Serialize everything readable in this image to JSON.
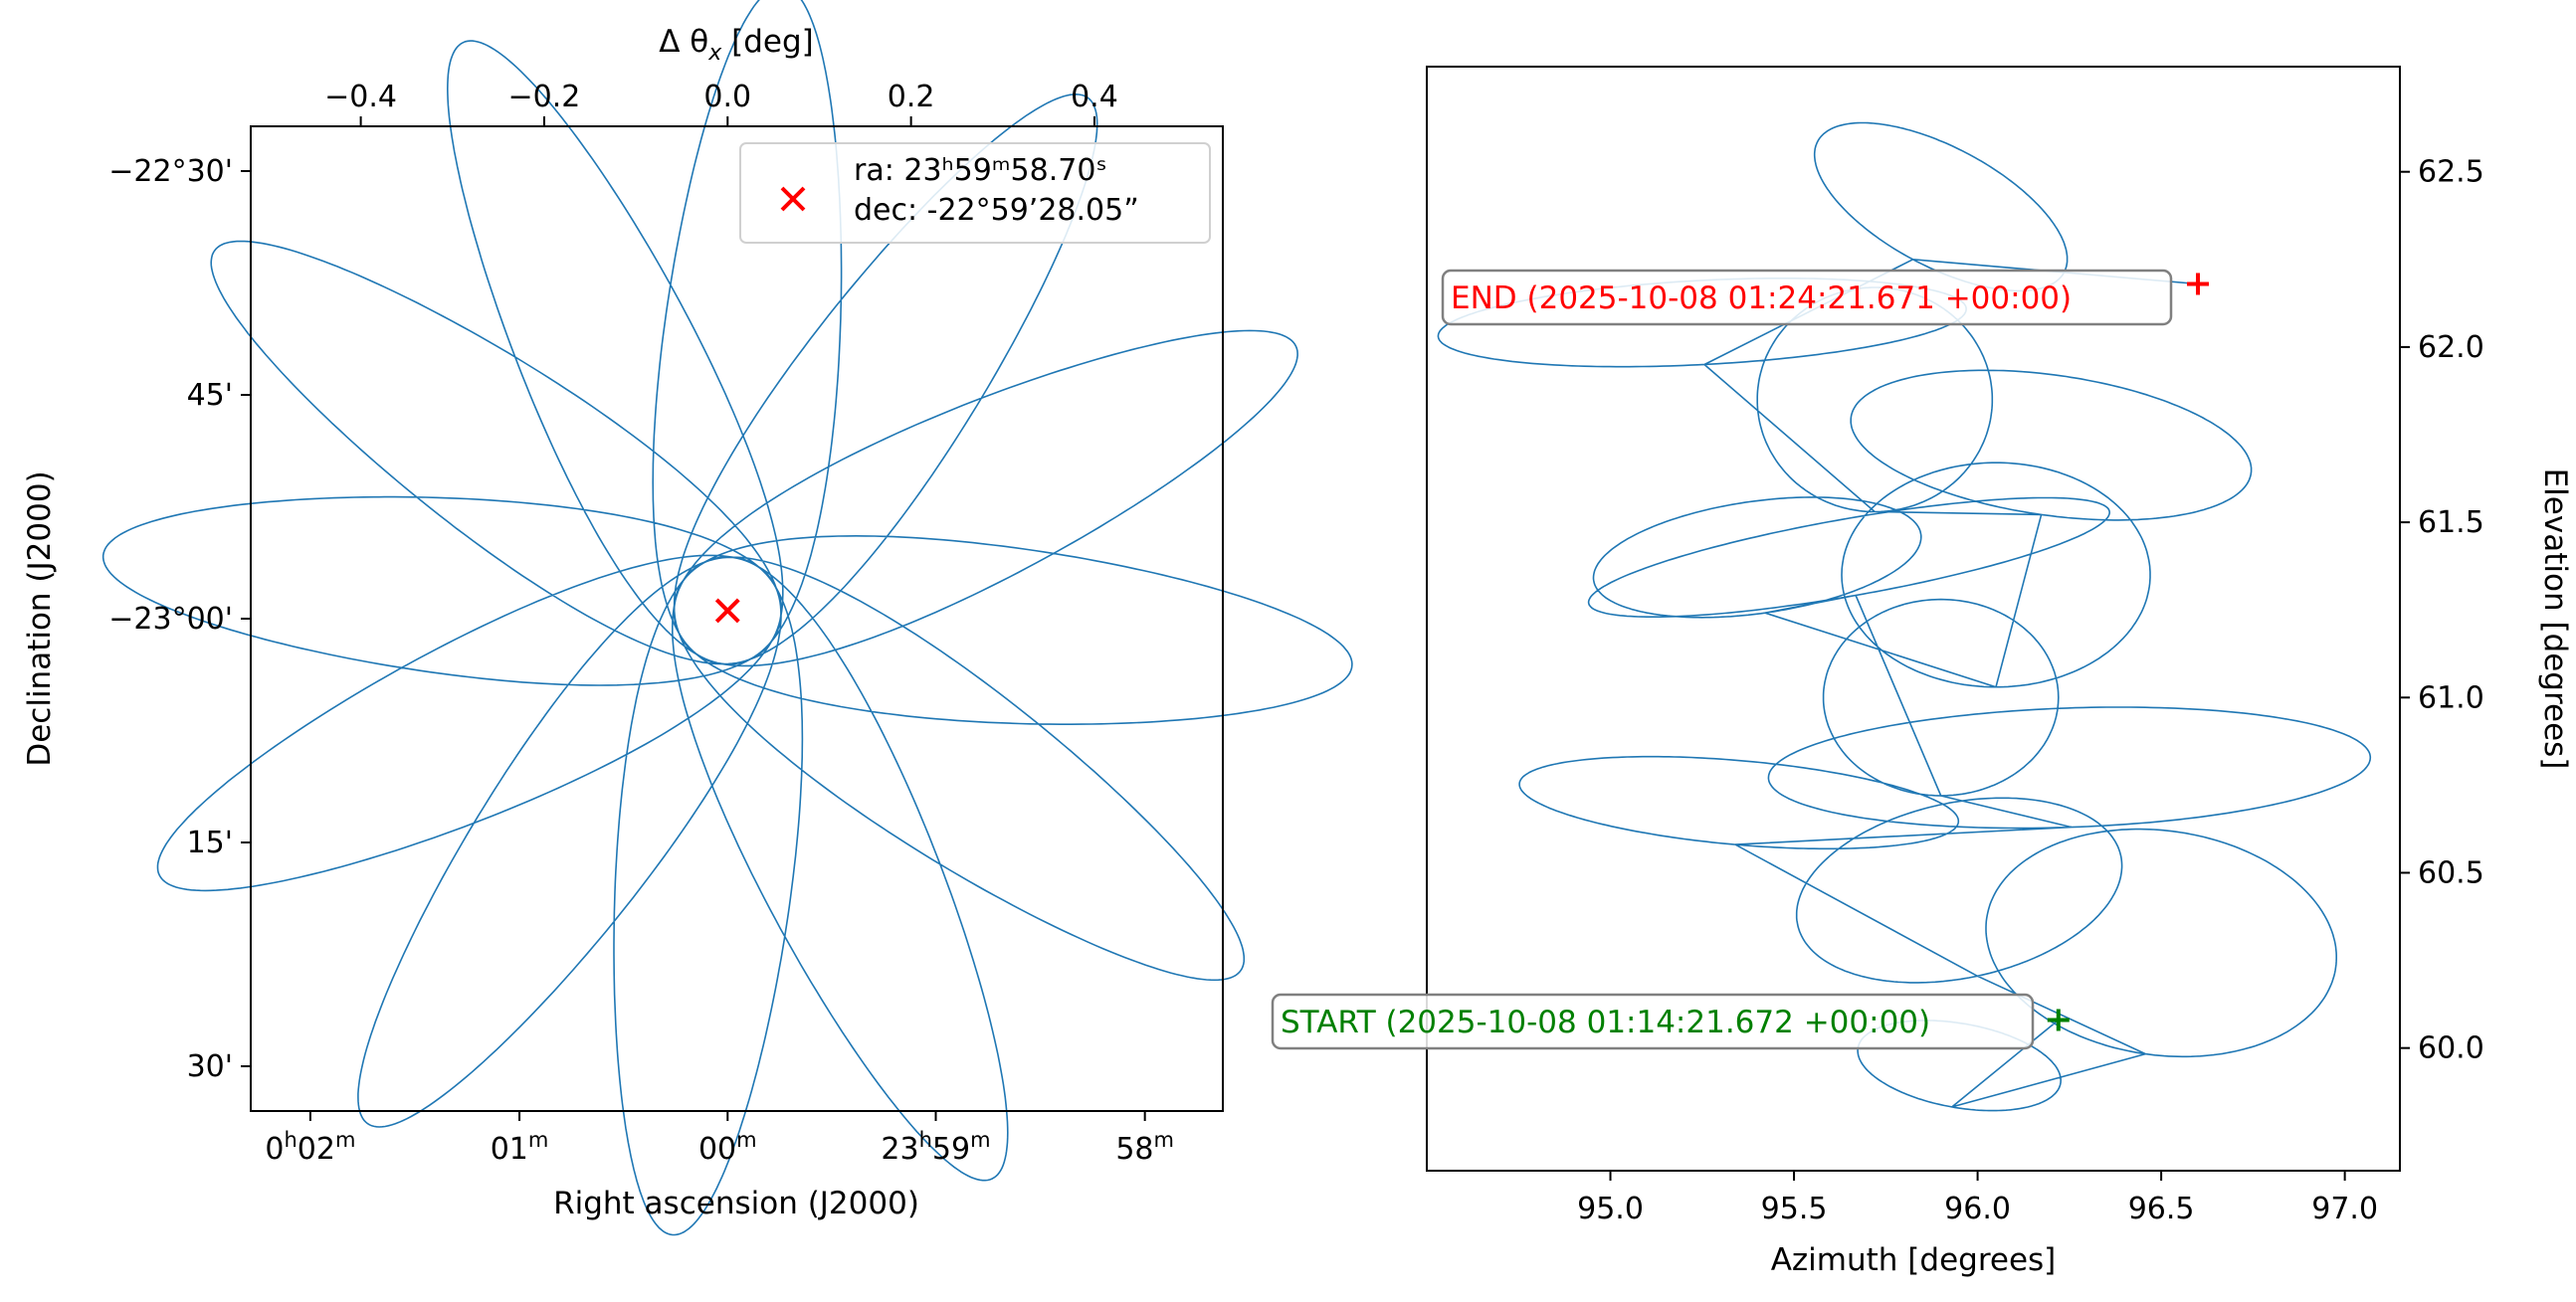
{
  "colors": {
    "track": "#1f77b4",
    "source_marker": "#ff0000",
    "end_label": "#ff0000",
    "start_label": "#008000",
    "annotation_box_edge": "#808080"
  },
  "chart_data": [
    {
      "type": "line",
      "panel": "sky",
      "projection": "celestial (RA/Dec)",
      "xlabel": "Right ascension (J2000)",
      "ylabel": "Declination (J2000)",
      "top_xlabel_prefix": "Δ θ",
      "top_xlabel_sub": "x",
      "top_xlabel_suffix": " [deg]",
      "top_xlim": [
        -0.52,
        0.54
      ],
      "top_ticks": [
        -0.4,
        -0.2,
        0.0,
        0.2,
        0.4
      ],
      "top_tick_labels": [
        "−0.4",
        "−0.2",
        "0.0",
        "0.2",
        "0.4"
      ],
      "ylim_deg": [
        -23.55,
        -22.45
      ],
      "yticks_deg": [
        -22.5,
        -22.75,
        -23.0,
        -23.25,
        -23.5
      ],
      "ytick_labels": [
        "−22°30'",
        "45'",
        "−23°00'",
        "15'",
        "30'"
      ],
      "xticks_offset_deg": [
        -0.455,
        -0.227,
        0.0,
        0.227,
        0.455
      ],
      "xtick_labels": [
        {
          "main": "0",
          "sup1": "h",
          "mid": "02",
          "sup2": "m"
        },
        {
          "main": "",
          "sup1": "",
          "mid": "01",
          "sup2": "m"
        },
        {
          "main": "",
          "sup1": "",
          "mid": "00",
          "sup2": "m"
        },
        {
          "main": "23",
          "sup1": "h",
          "mid": "59",
          "sup2": "m"
        },
        {
          "main": "",
          "sup1": "",
          "mid": "58",
          "sup2": "m"
        }
      ],
      "legend_position": "top-right",
      "legend_ra": "ra:  23ʰ59ᵐ58.70ˢ",
      "legend_dec": "dec: -22°59’28.05”",
      "source": {
        "dx_deg": 0.0,
        "dec_deg": -22.991
      },
      "track": {
        "kind": "rosette",
        "loops": 12,
        "center": {
          "dx_deg": 0.0,
          "dec_deg": -22.991
        },
        "semi_major_deg": 0.4,
        "semi_minor_deg": 0.14,
        "end": {
          "dx_deg": 0.25,
          "dec_deg": -23.41
        }
      }
    },
    {
      "type": "line",
      "panel": "horizon",
      "xlabel": "Azimuth [degrees]",
      "ylabel": "Elevation [degrees]",
      "xlim": [
        94.5,
        97.15
      ],
      "ylim": [
        59.65,
        62.8
      ],
      "xticks": [
        95.0,
        95.5,
        96.0,
        96.5,
        97.0
      ],
      "xtick_labels": [
        "95.0",
        "95.5",
        "96.0",
        "96.5",
        "97.0"
      ],
      "yticks": [
        60.0,
        60.5,
        61.0,
        61.5,
        62.0,
        62.5
      ],
      "ytick_labels": [
        "60.0",
        "60.5",
        "61.0",
        "61.5",
        "62.0",
        "62.5"
      ],
      "ylabel_side": "right",
      "end_label": "END (2025-10-08 01:24:21.671 +00:00)",
      "start_label": "START (2025-10-08 01:14:21.672 +00:00)",
      "end_point": {
        "az": 96.6,
        "el": 62.18
      },
      "start_point": {
        "az": 96.22,
        "el": 60.08
      },
      "track_loops": [
        {
          "az": 95.9,
          "el": 62.4,
          "a": 0.38,
          "b": 0.17,
          "rot_deg": 28
        },
        {
          "az": 95.25,
          "el": 62.07,
          "a": 0.72,
          "b": 0.12,
          "rot_deg": -3
        },
        {
          "az": 95.72,
          "el": 61.85,
          "a": 0.32,
          "b": 0.32,
          "rot_deg": 0
        },
        {
          "az": 96.2,
          "el": 61.72,
          "a": 0.55,
          "b": 0.2,
          "rot_deg": 8
        },
        {
          "az": 96.05,
          "el": 61.35,
          "a": 0.42,
          "b": 0.32,
          "rot_deg": 0
        },
        {
          "az": 95.4,
          "el": 61.4,
          "a": 0.45,
          "b": 0.16,
          "rot_deg": -8
        },
        {
          "az": 95.65,
          "el": 61.4,
          "a": 0.72,
          "b": 0.11,
          "rot_deg": -10
        },
        {
          "az": 95.9,
          "el": 61.0,
          "a": 0.32,
          "b": 0.28,
          "rot_deg": 0
        },
        {
          "az": 96.25,
          "el": 60.8,
          "a": 0.82,
          "b": 0.17,
          "rot_deg": -2
        },
        {
          "az": 95.35,
          "el": 60.7,
          "a": 0.6,
          "b": 0.12,
          "rot_deg": 5
        },
        {
          "az": 95.95,
          "el": 60.45,
          "a": 0.45,
          "b": 0.25,
          "rot_deg": -12
        },
        {
          "az": 96.5,
          "el": 60.3,
          "a": 0.48,
          "b": 0.32,
          "rot_deg": 8
        },
        {
          "az": 95.95,
          "el": 59.95,
          "a": 0.28,
          "b": 0.12,
          "rot_deg": 10
        }
      ]
    }
  ]
}
